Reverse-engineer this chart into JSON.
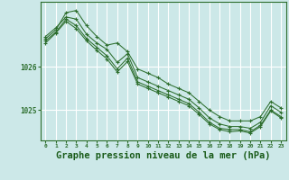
{
  "background_color": "#cce8e8",
  "plot_bg_color": "#cce8e8",
  "grid_color": "#ffffff",
  "line_color": "#2d6e2d",
  "marker_color": "#2d6e2d",
  "xlabel": "Graphe pression niveau de la mer (hPa)",
  "xlabel_fontsize": 7.5,
  "x_ticks": [
    0,
    1,
    2,
    3,
    4,
    5,
    6,
    7,
    8,
    9,
    10,
    11,
    12,
    13,
    14,
    15,
    16,
    17,
    18,
    19,
    20,
    21,
    22,
    23
  ],
  "ylim": [
    1024.3,
    1027.5
  ],
  "yticks": [
    1025,
    1026
  ],
  "ytick_labels": [
    "1025",
    "1026"
  ],
  "series": [
    [
      1026.65,
      1026.85,
      1027.25,
      1027.3,
      1026.95,
      1026.7,
      1026.5,
      1026.55,
      1026.35,
      1025.95,
      1025.85,
      1025.75,
      1025.6,
      1025.5,
      1025.4,
      1025.2,
      1025.0,
      1024.85,
      1024.75,
      1024.75,
      1024.75,
      1024.85,
      1025.2,
      1025.05
    ],
    [
      1026.7,
      1026.9,
      1027.15,
      1027.1,
      1026.75,
      1026.55,
      1026.4,
      1026.1,
      1026.3,
      1025.75,
      1025.65,
      1025.55,
      1025.45,
      1025.35,
      1025.25,
      1025.05,
      1024.82,
      1024.68,
      1024.62,
      1024.62,
      1024.58,
      1024.72,
      1025.1,
      1024.95
    ],
    [
      1026.6,
      1026.8,
      1027.1,
      1026.95,
      1026.65,
      1026.45,
      1026.25,
      1025.95,
      1026.2,
      1025.65,
      1025.55,
      1025.45,
      1025.35,
      1025.25,
      1025.15,
      1024.95,
      1024.72,
      1024.58,
      1024.55,
      1024.55,
      1024.5,
      1024.65,
      1025.0,
      1024.85
    ],
    [
      1026.55,
      1026.78,
      1027.05,
      1026.88,
      1026.6,
      1026.38,
      1026.18,
      1025.88,
      1026.12,
      1025.6,
      1025.5,
      1025.4,
      1025.3,
      1025.2,
      1025.1,
      1024.9,
      1024.68,
      1024.55,
      1024.5,
      1024.52,
      1024.47,
      1024.62,
      1024.98,
      1024.82
    ]
  ]
}
